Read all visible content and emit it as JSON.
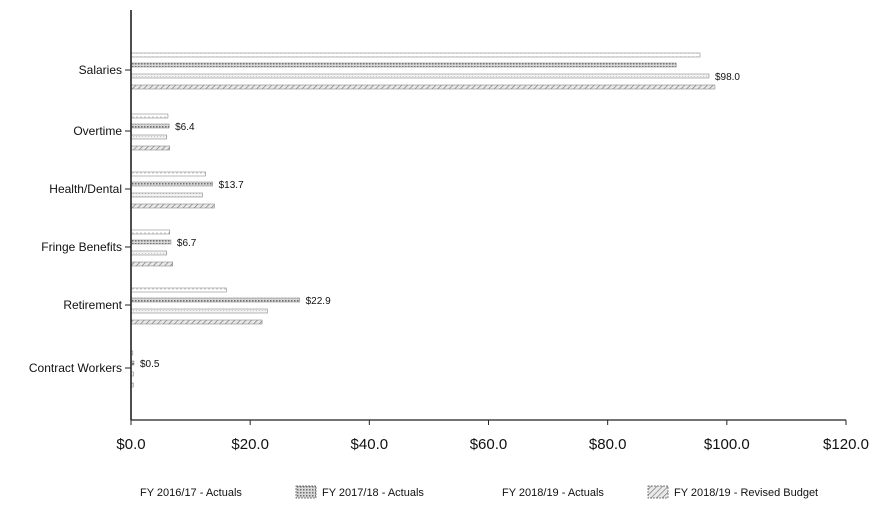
{
  "chart_data": {
    "type": "bar",
    "orientation": "horizontal",
    "title": "",
    "xlabel": "",
    "ylabel": "",
    "xlim": [
      0,
      120
    ],
    "x_ticks": [
      0,
      20,
      40,
      60,
      80,
      100,
      120
    ],
    "x_tick_labels": [
      "$0.0",
      "$20.0",
      "$40.0",
      "$60.0",
      "$80.0",
      "$100.0",
      "$120.0"
    ],
    "grid": false,
    "legend_position": "bottom",
    "categories": [
      "Salaries",
      "Overtime",
      "Health/Dental",
      "Fringe Benefits",
      "Retirement",
      "Contract Workers"
    ],
    "series": [
      {
        "name": "FY 2016/17 - Actuals",
        "values": [
          95.5,
          6.2,
          12.5,
          6.5,
          16.0,
          0.3
        ]
      },
      {
        "name": "FY 2017/18 - Actuals",
        "values": [
          91.5,
          6.4,
          13.7,
          6.7,
          28.3,
          0.5
        ]
      },
      {
        "name": "FY 2018/19 - Actuals",
        "values": [
          97.0,
          6.0,
          12.0,
          6.0,
          22.9,
          0.4
        ]
      },
      {
        "name": "FY 2018/19 - Revised Budget",
        "values": [
          98.0,
          6.5,
          14.0,
          7.0,
          22.0,
          0.4
        ]
      }
    ],
    "data_labels": [
      "$98.0",
      "$6.4",
      "$13.7",
      "$6.7",
      "$22.9",
      "$0.5"
    ],
    "colors": {
      "bar_fill": "#ffffff",
      "bar_stroke": "#8a8a8a",
      "axis": "#222222",
      "text": "#111111"
    }
  }
}
